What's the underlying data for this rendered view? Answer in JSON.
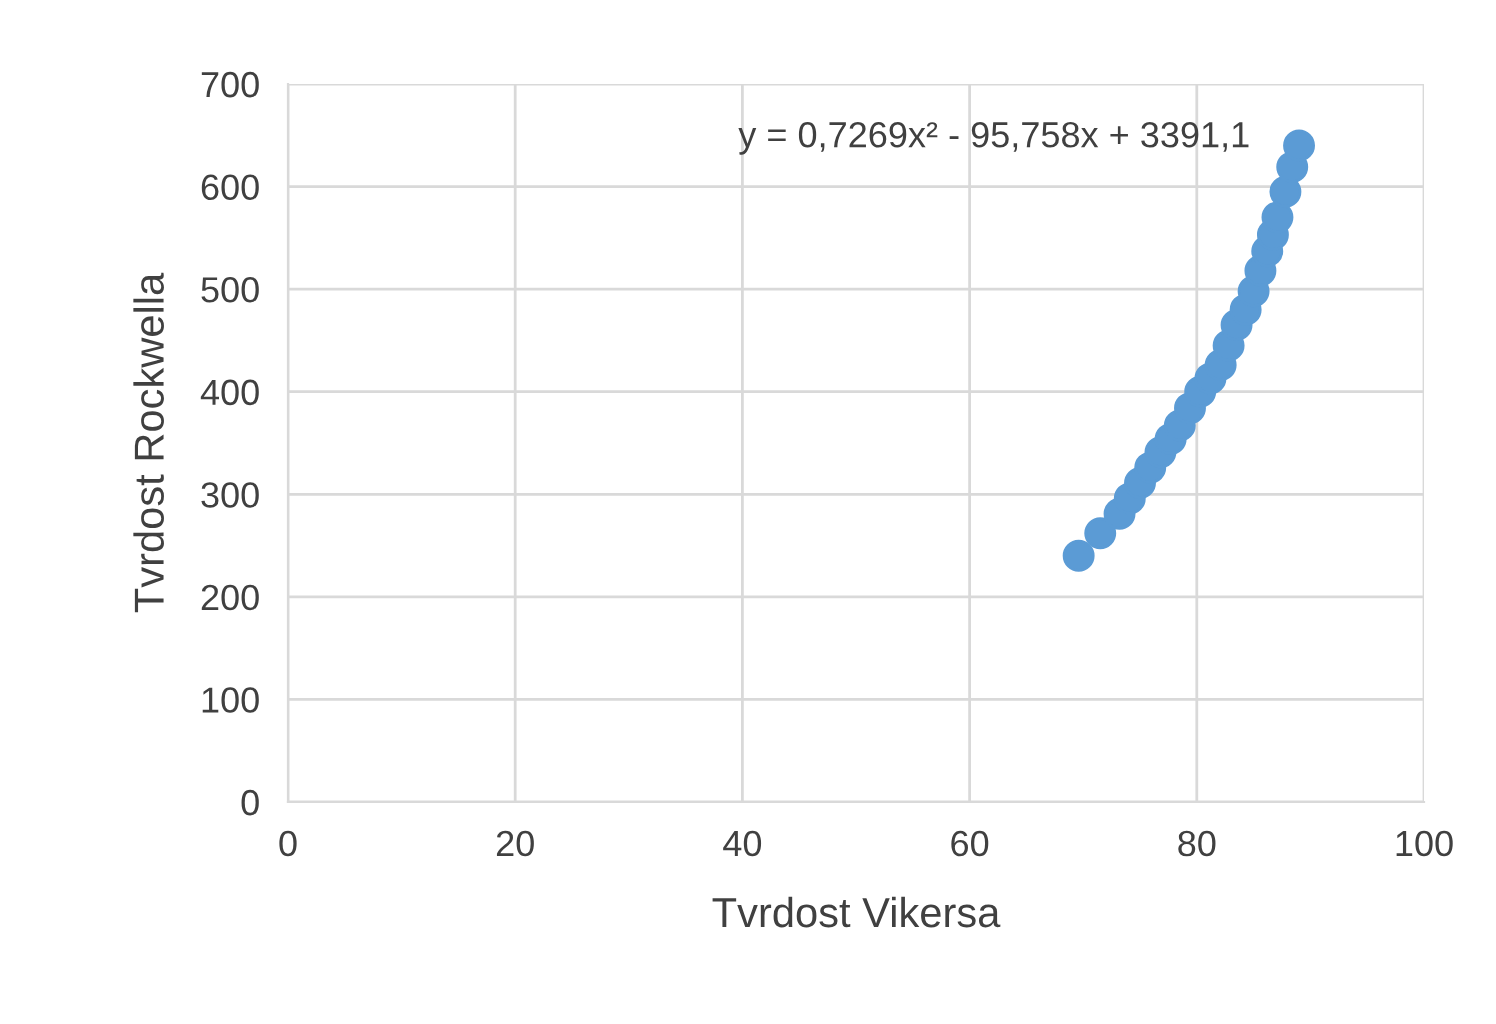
{
  "chart_data": {
    "type": "scatter",
    "xlabel": "Tvrdost Vikersa",
    "ylabel": "Tvrdost Rockwella",
    "annotations": [
      "y = 0,7269x² - 95,758x + 3391,1"
    ],
    "series": [
      {
        "color": "#5b9bd5",
        "x": [
          69.6,
          71.5,
          73.2,
          74.1,
          75.0,
          75.9,
          76.8,
          77.7,
          78.5,
          79.4,
          80.3,
          81.2,
          82.1,
          82.8,
          83.5,
          84.3,
          85.0,
          85.6,
          86.2,
          86.7,
          87.1,
          87.8,
          88.4,
          89.0
        ],
        "values": [
          240,
          262,
          281,
          296,
          311,
          326,
          341,
          354,
          367,
          384,
          400,
          413,
          426,
          445,
          465,
          480,
          498,
          518,
          537,
          553,
          570,
          595,
          619,
          640
        ]
      }
    ],
    "xlim": [
      0,
      100
    ],
    "xticks": [
      0,
      20,
      40,
      60,
      80,
      100
    ],
    "ylim": [
      0,
      700
    ],
    "yticks": [
      0,
      100,
      200,
      300,
      400,
      500,
      600,
      700
    ],
    "grid": true,
    "marker": "circle"
  }
}
